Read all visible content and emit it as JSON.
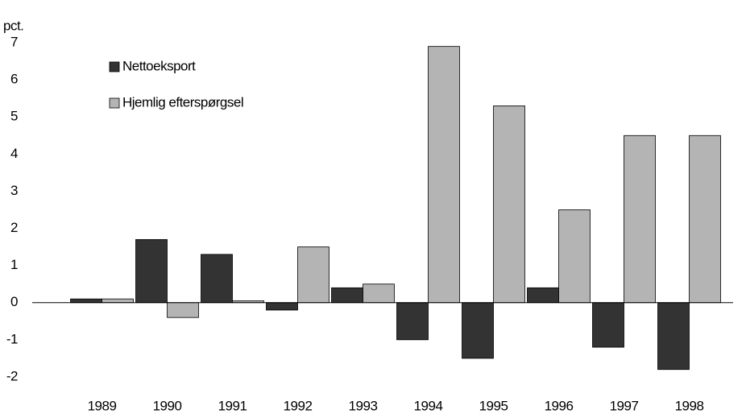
{
  "chart_data": {
    "type": "bar",
    "y_label": "pct.",
    "categories": [
      "1989",
      "1990",
      "1991",
      "1992",
      "1993",
      "1994",
      "1995",
      "1996",
      "1997",
      "1998"
    ],
    "series": [
      {
        "name": "Nettoeksport",
        "color": "#333333",
        "values": [
          0.1,
          1.7,
          1.3,
          -0.2,
          0.4,
          -1.0,
          -1.5,
          0.4,
          -1.2,
          -1.8
        ]
      },
      {
        "name": "Hjemlig efterspørgsel",
        "color": "#b4b4b4",
        "values": [
          0.1,
          -0.4,
          0.05,
          1.5,
          0.5,
          6.9,
          5.3,
          2.5,
          4.5,
          4.5
        ]
      }
    ],
    "ylim": [
      -2.5,
      7.5
    ],
    "yticks": [
      -2,
      -1,
      0,
      1,
      2,
      3,
      4,
      5,
      6,
      7
    ],
    "grid": false,
    "legend": "top-left"
  }
}
